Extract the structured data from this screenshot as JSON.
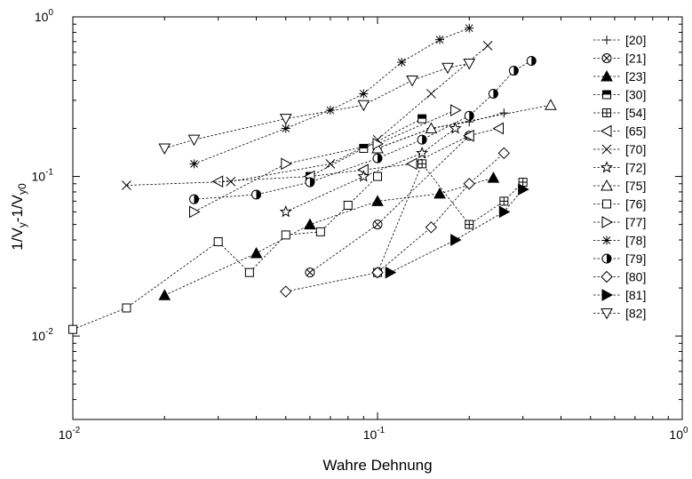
{
  "chart_data": {
    "type": "scatter",
    "title": "",
    "xlabel": "Wahre Dehnung",
    "ylabel": "1/V_y-1/V_y0",
    "xscale": "log",
    "yscale": "log",
    "xlim": [
      0.01,
      1
    ],
    "ylim": [
      0.003,
      1
    ],
    "x_ticks": [
      {
        "value": 0.01,
        "base": "10",
        "exp": "-2"
      },
      {
        "value": 0.1,
        "base": "10",
        "exp": "-1"
      },
      {
        "value": 1,
        "base": "10",
        "exp": "0"
      }
    ],
    "y_ticks": [
      {
        "value": 0.01,
        "base": "10",
        "exp": "-2"
      },
      {
        "value": 0.1,
        "base": "10",
        "exp": "-1"
      },
      {
        "value": 1,
        "base": "10",
        "exp": "0"
      }
    ],
    "grid": false,
    "legend_position": "right",
    "series": [
      {
        "name": "[20]",
        "marker": "plus",
        "x": [
          0.1,
          0.15,
          0.2,
          0.26
        ],
        "y": [
          0.15,
          0.2,
          0.22,
          0.25
        ]
      },
      {
        "name": "[21]",
        "marker": "circle-x",
        "x": [
          0.06,
          0.1,
          0.2
        ],
        "y": [
          0.025,
          0.05,
          0.18
        ]
      },
      {
        "name": "[23]",
        "marker": "triangle-filled",
        "x": [
          0.02,
          0.04,
          0.06,
          0.1,
          0.16,
          0.24
        ],
        "y": [
          0.018,
          0.033,
          0.05,
          0.07,
          0.078,
          0.098
        ]
      },
      {
        "name": "[30]",
        "marker": "square-half",
        "x": [
          0.06,
          0.09,
          0.14
        ],
        "y": [
          0.1,
          0.15,
          0.23
        ]
      },
      {
        "name": "[54]",
        "marker": "square-plus",
        "x": [
          0.1,
          0.14,
          0.2,
          0.26,
          0.3
        ],
        "y": [
          0.025,
          0.12,
          0.05,
          0.07,
          0.092
        ]
      },
      {
        "name": "[65]",
        "marker": "triangle-left",
        "x": [
          0.03,
          0.06,
          0.09,
          0.13,
          0.2,
          0.25
        ],
        "y": [
          0.093,
          0.1,
          0.11,
          0.12,
          0.18,
          0.2
        ]
      },
      {
        "name": "[70]",
        "marker": "x",
        "x": [
          0.015,
          0.033,
          0.07,
          0.1,
          0.15,
          0.23
        ],
        "y": [
          0.088,
          0.093,
          0.12,
          0.17,
          0.33,
          0.66
        ]
      },
      {
        "name": "[72]",
        "marker": "star",
        "x": [
          0.05,
          0.09,
          0.14,
          0.18
        ],
        "y": [
          0.06,
          0.1,
          0.14,
          0.2
        ]
      },
      {
        "name": "[75]",
        "marker": "triangle-up",
        "x": [
          0.1,
          0.15,
          0.37
        ],
        "y": [
          0.15,
          0.2,
          0.28
        ]
      },
      {
        "name": "[76]",
        "marker": "square",
        "x": [
          0.01,
          0.015,
          0.03,
          0.038,
          0.05,
          0.065,
          0.08,
          0.1
        ],
        "y": [
          0.011,
          0.015,
          0.039,
          0.025,
          0.043,
          0.045,
          0.066,
          0.1
        ]
      },
      {
        "name": "[77]",
        "marker": "triangle-right",
        "x": [
          0.025,
          0.05,
          0.1,
          0.18
        ],
        "y": [
          0.06,
          0.12,
          0.16,
          0.26
        ]
      },
      {
        "name": "[78]",
        "marker": "asterisk",
        "x": [
          0.025,
          0.05,
          0.07,
          0.09,
          0.12,
          0.16,
          0.2
        ],
        "y": [
          0.12,
          0.2,
          0.26,
          0.33,
          0.52,
          0.72,
          0.85
        ]
      },
      {
        "name": "[79]",
        "marker": "circle-half",
        "x": [
          0.025,
          0.04,
          0.06,
          0.1,
          0.14,
          0.2,
          0.24,
          0.28,
          0.32
        ],
        "y": [
          0.072,
          0.077,
          0.092,
          0.13,
          0.17,
          0.24,
          0.33,
          0.46,
          0.53
        ]
      },
      {
        "name": "[80]",
        "marker": "diamond",
        "x": [
          0.05,
          0.1,
          0.15,
          0.2,
          0.26
        ],
        "y": [
          0.019,
          0.025,
          0.048,
          0.09,
          0.14
        ]
      },
      {
        "name": "[81]",
        "marker": "triangle-right-filled",
        "x": [
          0.11,
          0.18,
          0.26,
          0.3
        ],
        "y": [
          0.025,
          0.04,
          0.06,
          0.083
        ]
      },
      {
        "name": "[82]",
        "marker": "triangle-down",
        "x": [
          0.02,
          0.025,
          0.05,
          0.09,
          0.13,
          0.17,
          0.2
        ],
        "y": [
          0.15,
          0.17,
          0.23,
          0.28,
          0.4,
          0.48,
          0.51
        ]
      }
    ]
  }
}
